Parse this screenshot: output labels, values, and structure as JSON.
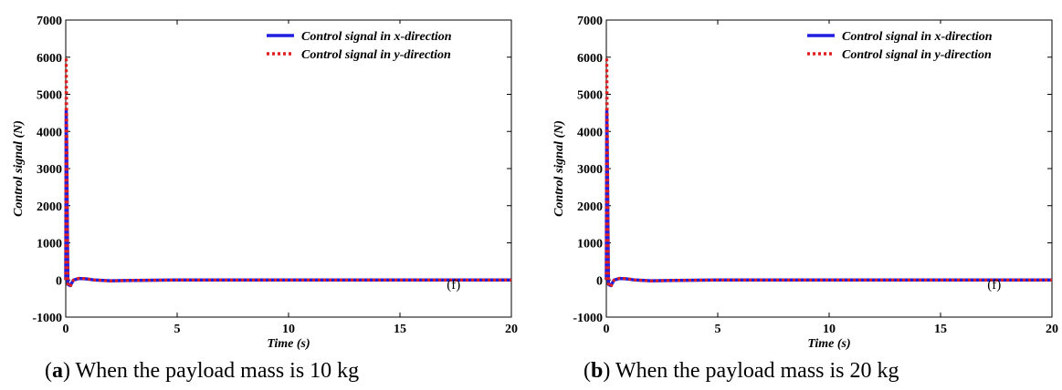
{
  "chart_data": [
    {
      "type": "line",
      "xlabel": "Time (s)",
      "ylabel": "Control signal  (N)",
      "xlim": [
        0,
        20
      ],
      "ylim": [
        -1000,
        7000
      ],
      "xticks": [
        "0",
        "5",
        "10",
        "15",
        "20"
      ],
      "yticks": [
        "-1000",
        "0",
        "1000",
        "2000",
        "3000",
        "4000",
        "5000",
        "6000",
        "7000"
      ],
      "legend_position": "top-right",
      "annotation": "(f)",
      "caption": {
        "letter": "a",
        "text": " When the payload mass is 10 kg"
      },
      "series": [
        {
          "name": "Control signal in x-direction",
          "color": "#1f1fe0",
          "style": "solid",
          "x": [
            0,
            0.02,
            0.05,
            0.08,
            0.1,
            0.2,
            0.35,
            0.6,
            0.9,
            1.3,
            2.0,
            3.0,
            5.0,
            10.0,
            15.0,
            20.0
          ],
          "y": [
            0,
            4550,
            3000,
            800,
            -120,
            -150,
            0,
            40,
            30,
            0,
            -20,
            -10,
            0,
            0,
            0,
            0
          ]
        },
        {
          "name": "Control signal in y-direction",
          "color": "#e02020",
          "style": "dotted",
          "x": [
            0,
            0.02,
            0.05,
            0.08,
            0.1,
            0.2,
            0.35,
            0.6,
            0.9,
            1.3,
            2.0,
            3.0,
            5.0,
            10.0,
            15.0,
            20.0
          ],
          "y": [
            0,
            6000,
            4000,
            1000,
            -150,
            -180,
            0,
            45,
            35,
            0,
            -25,
            -10,
            0,
            0,
            0,
            0
          ]
        }
      ]
    },
    {
      "type": "line",
      "xlabel": "Time (s)",
      "ylabel": "Control signal  (N)",
      "xlim": [
        0,
        20
      ],
      "ylim": [
        -1000,
        7000
      ],
      "xticks": [
        "0",
        "5",
        "10",
        "15",
        "20"
      ],
      "yticks": [
        "-1000",
        "0",
        "1000",
        "2000",
        "3000",
        "4000",
        "5000",
        "6000",
        "7000"
      ],
      "legend_position": "top-right",
      "annotation": "(f)",
      "caption": {
        "letter": "b",
        "text": " When the payload mass is 20 kg"
      },
      "series": [
        {
          "name": "Control signal in x-direction",
          "color": "#1f1fe0",
          "style": "solid",
          "x": [
            0,
            0.02,
            0.05,
            0.08,
            0.1,
            0.2,
            0.35,
            0.6,
            0.9,
            1.3,
            2.0,
            3.0,
            5.0,
            10.0,
            15.0,
            20.0
          ],
          "y": [
            0,
            4550,
            3000,
            800,
            -120,
            -150,
            0,
            40,
            30,
            0,
            -20,
            -10,
            0,
            0,
            0,
            0
          ]
        },
        {
          "name": "Control signal in y-direction",
          "color": "#e02020",
          "style": "dotted",
          "x": [
            0,
            0.02,
            0.05,
            0.08,
            0.1,
            0.2,
            0.35,
            0.6,
            0.9,
            1.3,
            2.0,
            3.0,
            5.0,
            10.0,
            15.0,
            20.0
          ],
          "y": [
            0,
            6000,
            4000,
            1000,
            -150,
            -180,
            0,
            45,
            35,
            0,
            -25,
            -10,
            0,
            0,
            0,
            0
          ]
        }
      ]
    }
  ]
}
